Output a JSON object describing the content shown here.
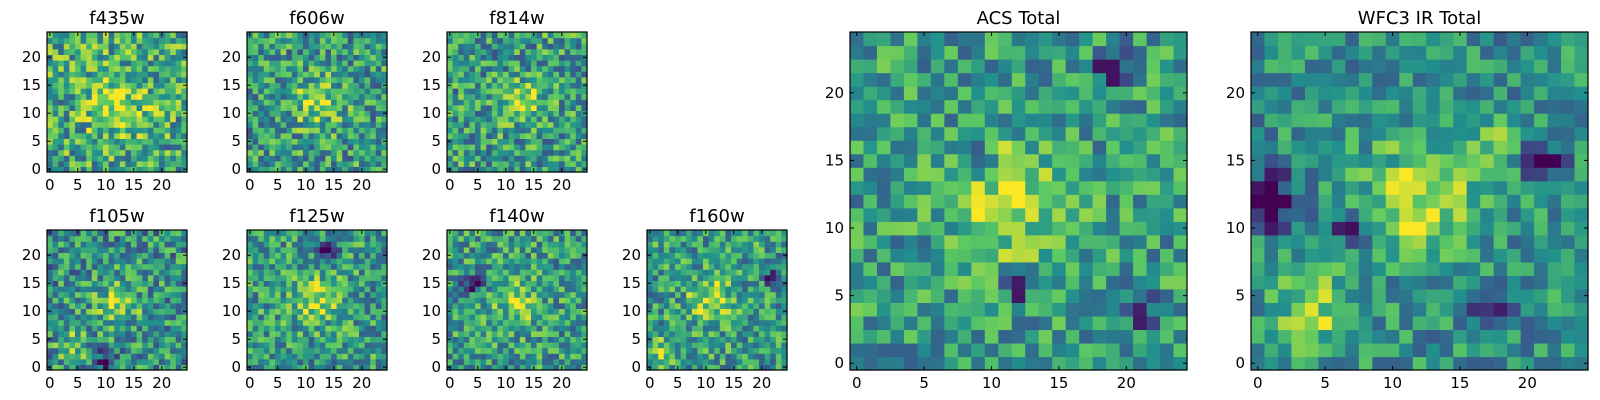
{
  "figure": {
    "colormap": "viridis",
    "color_stops": [
      "#440154",
      "#3b528b",
      "#21908d",
      "#5dc962",
      "#fde725"
    ]
  },
  "chart_data": [
    {
      "type": "heatmap",
      "title": "f435w",
      "grid_size": [
        25,
        25
      ],
      "xlim": [
        -0.5,
        24.5
      ],
      "ylim": [
        -0.5,
        24.5
      ],
      "xticks": [
        0,
        5,
        10,
        15,
        20
      ],
      "yticks": [
        0,
        5,
        10,
        15,
        20
      ],
      "origin": "lower",
      "features": {
        "base": 0.6,
        "noise": 0.32,
        "blobs": [
          {
            "x": 12,
            "y": 12,
            "amp": 0.28,
            "sigma": 4
          }
        ],
        "dips": [],
        "seed": 11
      }
    },
    {
      "type": "heatmap",
      "title": "f606w",
      "grid_size": [
        25,
        25
      ],
      "xlim": [
        -0.5,
        24.5
      ],
      "ylim": [
        -0.5,
        24.5
      ],
      "xticks": [
        0,
        5,
        10,
        15,
        20
      ],
      "yticks": [
        0,
        5,
        10,
        15,
        20
      ],
      "origin": "lower",
      "features": {
        "base": 0.55,
        "noise": 0.3,
        "blobs": [
          {
            "x": 12,
            "y": 12,
            "amp": 0.3,
            "sigma": 3
          }
        ],
        "dips": [],
        "seed": 23
      }
    },
    {
      "type": "heatmap",
      "title": "f814w",
      "grid_size": [
        25,
        25
      ],
      "xlim": [
        -0.5,
        24.5
      ],
      "ylim": [
        -0.5,
        24.5
      ],
      "xticks": [
        0,
        5,
        10,
        15,
        20
      ],
      "yticks": [
        0,
        5,
        10,
        15,
        20
      ],
      "origin": "lower",
      "features": {
        "base": 0.55,
        "noise": 0.3,
        "blobs": [
          {
            "x": 13,
            "y": 12,
            "amp": 0.35,
            "sigma": 2.5
          }
        ],
        "dips": [],
        "seed": 37
      }
    },
    {
      "type": "heatmap",
      "title": "f105w",
      "grid_size": [
        25,
        25
      ],
      "xlim": [
        -0.5,
        24.5
      ],
      "ylim": [
        -0.5,
        24.5
      ],
      "xticks": [
        0,
        5,
        10,
        15,
        20
      ],
      "yticks": [
        0,
        5,
        10,
        15,
        20
      ],
      "origin": "lower",
      "features": {
        "base": 0.5,
        "noise": 0.3,
        "blobs": [
          {
            "x": 12,
            "y": 12,
            "amp": 0.3,
            "sigma": 3
          },
          {
            "x": 4,
            "y": 4,
            "amp": 0.25,
            "sigma": 2
          }
        ],
        "dips": [
          {
            "x": 10,
            "y": 1,
            "amp": 0.5,
            "sigma": 1.2
          }
        ],
        "seed": 41
      }
    },
    {
      "type": "heatmap",
      "title": "f125w",
      "grid_size": [
        25,
        25
      ],
      "xlim": [
        -0.5,
        24.5
      ],
      "ylim": [
        -0.5,
        24.5
      ],
      "xticks": [
        0,
        5,
        10,
        15,
        20
      ],
      "yticks": [
        0,
        5,
        10,
        15,
        20
      ],
      "origin": "lower",
      "features": {
        "base": 0.55,
        "noise": 0.28,
        "blobs": [
          {
            "x": 12,
            "y": 12,
            "amp": 0.3,
            "sigma": 3
          }
        ],
        "dips": [
          {
            "x": 14,
            "y": 21,
            "amp": 0.5,
            "sigma": 1.2
          }
        ],
        "seed": 53
      }
    },
    {
      "type": "heatmap",
      "title": "f140w",
      "grid_size": [
        25,
        25
      ],
      "xlim": [
        -0.5,
        24.5
      ],
      "ylim": [
        -0.5,
        24.5
      ],
      "xticks": [
        0,
        5,
        10,
        15,
        20
      ],
      "yticks": [
        0,
        5,
        10,
        15,
        20
      ],
      "origin": "lower",
      "features": {
        "base": 0.55,
        "noise": 0.28,
        "blobs": [
          {
            "x": 12,
            "y": 12,
            "amp": 0.25,
            "sigma": 3
          }
        ],
        "dips": [
          {
            "x": 4,
            "y": 15,
            "amp": 0.45,
            "sigma": 1.2
          }
        ],
        "seed": 67
      }
    },
    {
      "type": "heatmap",
      "title": "f160w",
      "grid_size": [
        25,
        25
      ],
      "xlim": [
        -0.5,
        24.5
      ],
      "ylim": [
        -0.5,
        24.5
      ],
      "xticks": [
        0,
        5,
        10,
        15,
        20
      ],
      "yticks": [
        0,
        5,
        10,
        15,
        20
      ],
      "origin": "lower",
      "features": {
        "base": 0.55,
        "noise": 0.28,
        "blobs": [
          {
            "x": 11,
            "y": 12,
            "amp": 0.3,
            "sigma": 3
          },
          {
            "x": 2,
            "y": 3,
            "amp": 0.25,
            "sigma": 2
          }
        ],
        "dips": [
          {
            "x": 22,
            "y": 16,
            "amp": 0.5,
            "sigma": 1.2
          }
        ],
        "seed": 79
      }
    },
    {
      "type": "heatmap",
      "title": "ACS Total",
      "grid_size": [
        25,
        25
      ],
      "xlim": [
        -0.5,
        24.5
      ],
      "ylim": [
        -0.5,
        24.5
      ],
      "xticks": [
        0,
        5,
        10,
        15,
        20
      ],
      "yticks": [
        0,
        5,
        10,
        15,
        20
      ],
      "origin": "lower",
      "features": {
        "base": 0.55,
        "noise": 0.25,
        "blobs": [
          {
            "x": 11,
            "y": 12,
            "amp": 0.35,
            "sigma": 3
          }
        ],
        "dips": [
          {
            "x": 9,
            "y": 15,
            "amp": 0.6,
            "sigma": 0.8
          },
          {
            "x": 19,
            "y": 22,
            "amp": 0.6,
            "sigma": 0.8
          },
          {
            "x": 12,
            "y": 6,
            "amp": 0.6,
            "sigma": 0.8
          },
          {
            "x": 21,
            "y": 4,
            "amp": 0.6,
            "sigma": 0.8
          }
        ],
        "seed": 97
      }
    },
    {
      "type": "heatmap",
      "title": "WFC3 IR Total",
      "grid_size": [
        25,
        25
      ],
      "xlim": [
        -0.5,
        24.5
      ],
      "ylim": [
        -0.5,
        24.5
      ],
      "xticks": [
        0,
        5,
        10,
        15,
        20
      ],
      "yticks": [
        0,
        5,
        10,
        15,
        20
      ],
      "origin": "lower",
      "features": {
        "base": 0.5,
        "noise": 0.22,
        "blobs": [
          {
            "x": 12,
            "y": 12,
            "amp": 0.4,
            "sigma": 3
          },
          {
            "x": 4,
            "y": 4,
            "amp": 0.35,
            "sigma": 2
          },
          {
            "x": 18,
            "y": 16,
            "amp": 0.3,
            "sigma": 1.2
          }
        ],
        "dips": [
          {
            "x": 1,
            "y": 12,
            "amp": 0.7,
            "sigma": 1.3
          },
          {
            "x": 21,
            "y": 15,
            "amp": 0.6,
            "sigma": 1
          },
          {
            "x": 7,
            "y": 10,
            "amp": 0.6,
            "sigma": 0.8
          },
          {
            "x": 17,
            "y": 4,
            "amp": 0.5,
            "sigma": 1
          }
        ],
        "seed": 113
      }
    }
  ]
}
